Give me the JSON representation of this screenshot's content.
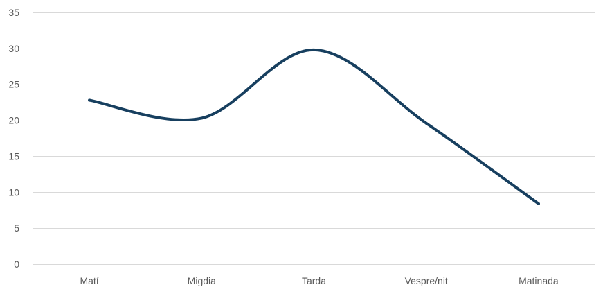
{
  "chart_data": {
    "type": "line",
    "title": "",
    "xlabel": "",
    "ylabel": "",
    "categories": [
      "Matí",
      "Migdia",
      "Tarda",
      "Vespre/nit",
      "Matinada"
    ],
    "series": [
      {
        "values": [
          22.8,
          20.3,
          29.8,
          19.6,
          8.4
        ],
        "color": "#173f5f",
        "smooth": true
      }
    ],
    "ylim": [
      0,
      35
    ],
    "yticks": [
      0,
      5,
      10,
      15,
      20,
      25,
      30,
      35
    ],
    "grid": true,
    "legend": "none"
  }
}
